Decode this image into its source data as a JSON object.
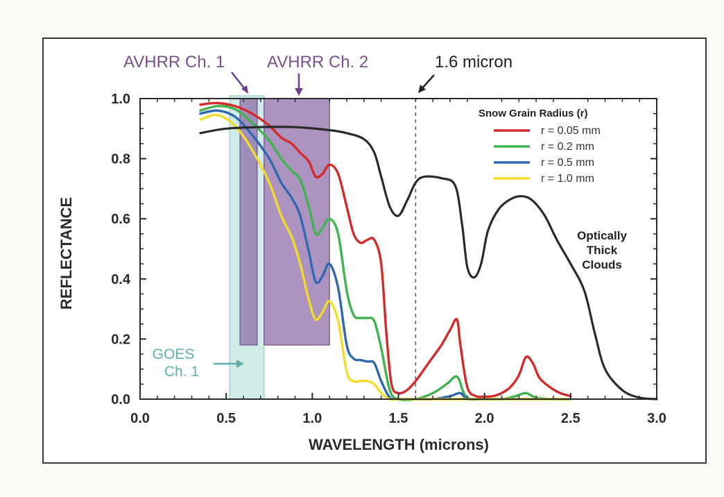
{
  "chart_data": {
    "type": "line",
    "xlabel": "WAVELENGTH (microns)",
    "ylabel": "REFLECTANCE",
    "xlim": [
      0.0,
      3.0
    ],
    "ylim": [
      0.0,
      1.0
    ],
    "xticks": [
      0.0,
      0.5,
      1.0,
      1.5,
      2.0,
      2.5,
      3.0
    ],
    "xtick_labels": [
      "0.0",
      "0.5",
      "1.0",
      "1.5",
      "2.0",
      "2.5",
      "3.0"
    ],
    "yticks": [
      0.0,
      0.2,
      0.4,
      0.6,
      0.8,
      1.0
    ],
    "ytick_labels": [
      "0.0",
      "0.2",
      "0.4",
      "0.6",
      "0.8",
      "1.0"
    ],
    "grid": false,
    "legend": {
      "title": "Snow Grain Radius (r)",
      "placement": "top-right"
    },
    "series": [
      {
        "name": "r = 0.05 mm",
        "color": "#d42a2a",
        "x": [
          0.35,
          0.45,
          0.55,
          0.65,
          0.75,
          0.82,
          0.88,
          0.93,
          0.98,
          1.02,
          1.06,
          1.1,
          1.15,
          1.2,
          1.24,
          1.28,
          1.32,
          1.36,
          1.4,
          1.43,
          1.46,
          1.5,
          1.55,
          1.6,
          1.65,
          1.7,
          1.75,
          1.8,
          1.84,
          1.86,
          1.9,
          1.95,
          2.0,
          2.05,
          2.1,
          2.15,
          2.2,
          2.24,
          2.28,
          2.32,
          2.38,
          2.44,
          2.5
        ],
        "y": [
          0.98,
          0.985,
          0.975,
          0.95,
          0.91,
          0.87,
          0.85,
          0.82,
          0.79,
          0.74,
          0.75,
          0.78,
          0.75,
          0.64,
          0.55,
          0.52,
          0.53,
          0.53,
          0.45,
          0.22,
          0.05,
          0.02,
          0.03,
          0.06,
          0.1,
          0.14,
          0.18,
          0.23,
          0.265,
          0.18,
          0.04,
          0.01,
          0.008,
          0.01,
          0.02,
          0.04,
          0.08,
          0.14,
          0.12,
          0.07,
          0.04,
          0.02,
          0.01
        ]
      },
      {
        "name": "r = 0.2 mm",
        "color": "#3fb34f",
        "x": [
          0.35,
          0.45,
          0.55,
          0.65,
          0.75,
          0.82,
          0.88,
          0.93,
          0.98,
          1.02,
          1.06,
          1.1,
          1.15,
          1.2,
          1.24,
          1.28,
          1.32,
          1.36,
          1.4,
          1.45,
          1.5,
          1.6,
          1.7,
          1.78,
          1.84,
          1.88,
          1.92,
          2.0,
          2.1,
          2.18,
          2.24,
          2.3,
          2.4,
          2.5
        ],
        "y": [
          0.96,
          0.975,
          0.965,
          0.92,
          0.86,
          0.8,
          0.76,
          0.73,
          0.64,
          0.55,
          0.57,
          0.6,
          0.55,
          0.36,
          0.28,
          0.27,
          0.27,
          0.26,
          0.17,
          0.03,
          0.0,
          0.0,
          0.02,
          0.05,
          0.075,
          0.02,
          0.0,
          0.0,
          0.0,
          0.01,
          0.02,
          0.005,
          0.0,
          0.0
        ]
      },
      {
        "name": "r = 0.5 mm",
        "color": "#2f68b0",
        "x": [
          0.35,
          0.45,
          0.55,
          0.65,
          0.75,
          0.82,
          0.88,
          0.93,
          0.98,
          1.02,
          1.06,
          1.1,
          1.15,
          1.2,
          1.24,
          1.28,
          1.32,
          1.36,
          1.4,
          1.45,
          1.5,
          1.6,
          1.7,
          1.8,
          1.86,
          1.9,
          2.0,
          2.2,
          2.3,
          2.5
        ],
        "y": [
          0.95,
          0.96,
          0.94,
          0.88,
          0.8,
          0.72,
          0.67,
          0.61,
          0.49,
          0.39,
          0.41,
          0.45,
          0.37,
          0.18,
          0.135,
          0.13,
          0.125,
          0.12,
          0.06,
          0.005,
          0.0,
          0.0,
          0.0,
          0.01,
          0.02,
          0.0,
          0.0,
          0.0,
          0.0,
          0.0
        ]
      },
      {
        "name": "r = 1.0 mm",
        "color": "#f2dc2a",
        "x": [
          0.35,
          0.45,
          0.55,
          0.65,
          0.75,
          0.82,
          0.88,
          0.93,
          0.98,
          1.02,
          1.06,
          1.1,
          1.15,
          1.2,
          1.24,
          1.28,
          1.32,
          1.36,
          1.4,
          1.45,
          1.5,
          1.6,
          1.8,
          2.0,
          2.2,
          2.4,
          2.5
        ],
        "y": [
          0.93,
          0.945,
          0.91,
          0.83,
          0.72,
          0.61,
          0.54,
          0.45,
          0.33,
          0.265,
          0.29,
          0.325,
          0.26,
          0.09,
          0.06,
          0.06,
          0.06,
          0.05,
          0.02,
          0.0,
          0.0,
          0.0,
          0.0,
          0.0,
          0.0,
          0.0,
          0.0
        ]
      },
      {
        "name": "Optically Thick Clouds",
        "color": "#2a2a2a",
        "x": [
          0.35,
          0.5,
          0.7,
          0.9,
          1.1,
          1.2,
          1.3,
          1.36,
          1.4,
          1.45,
          1.5,
          1.55,
          1.6,
          1.65,
          1.75,
          1.83,
          1.87,
          1.9,
          1.94,
          1.98,
          2.02,
          2.08,
          2.15,
          2.22,
          2.28,
          2.35,
          2.42,
          2.5,
          2.58,
          2.64,
          2.7,
          2.8,
          2.9,
          3.0
        ],
        "y": [
          0.885,
          0.9,
          0.905,
          0.905,
          0.895,
          0.885,
          0.865,
          0.82,
          0.74,
          0.64,
          0.61,
          0.66,
          0.72,
          0.74,
          0.735,
          0.71,
          0.58,
          0.44,
          0.405,
          0.45,
          0.56,
          0.63,
          0.665,
          0.675,
          0.66,
          0.61,
          0.53,
          0.45,
          0.36,
          0.22,
          0.1,
          0.03,
          0.005,
          0.0
        ]
      }
    ],
    "bands": [
      {
        "name": "AVHRR Ch. 1",
        "x": [
          0.58,
          0.68
        ],
        "y": [
          0.18,
          1.0
        ],
        "color": "#8c6aa8"
      },
      {
        "name": "AVHRR Ch. 2",
        "x": [
          0.72,
          1.1
        ],
        "y": [
          0.18,
          1.0
        ],
        "color": "#8c6aa8"
      },
      {
        "name": "GOES Ch. 1",
        "x": [
          0.52,
          0.72
        ],
        "y": [
          0.0,
          1.0
        ],
        "color": "#a9dbd6"
      }
    ],
    "reference_line": {
      "x": 1.6,
      "label": "1.6 micron"
    },
    "annotations": {
      "avhrr_ch1": "AVHRR Ch. 1",
      "avhrr_ch2": "AVHRR Ch. 2",
      "micron_line": "1.6 micron",
      "goes_line1": "GOES",
      "goes_line2": "Ch. 1",
      "clouds_line1": "Optically",
      "clouds_line2": "Thick",
      "clouds_line3": "Clouds"
    }
  }
}
